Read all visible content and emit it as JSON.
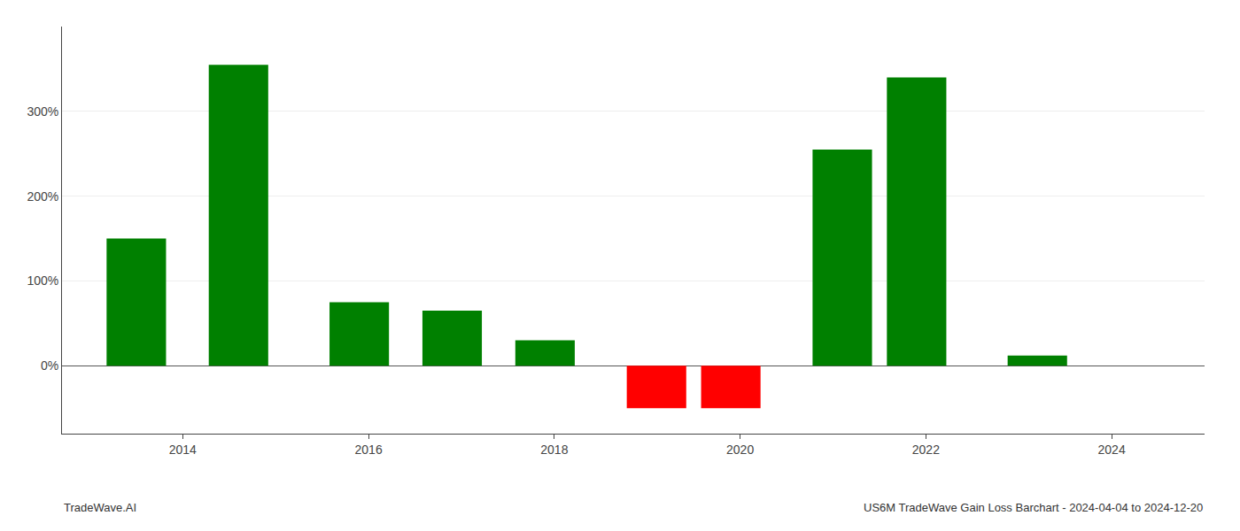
{
  "chart_data": {
    "type": "bar",
    "x": [
      2013.5,
      2014.6,
      2015.9,
      2016.9,
      2017.9,
      2019.1,
      2019.9,
      2021.1,
      2021.9,
      2023.2
    ],
    "values": [
      150,
      355,
      75,
      65,
      30,
      -50,
      -50,
      255,
      340,
      12
    ],
    "colors": [
      "#008000",
      "#008000",
      "#008000",
      "#008000",
      "#008000",
      "#ff0000",
      "#ff0000",
      "#008000",
      "#008000",
      "#008000"
    ],
    "xlim": [
      2012.7,
      2025.0
    ],
    "xticks": [
      2014,
      2016,
      2018,
      2020,
      2022,
      2024
    ],
    "ylim": [
      -80,
      400
    ],
    "yticks": [
      {
        "value": 0,
        "label": "0%"
      },
      {
        "value": 100,
        "label": "100%"
      },
      {
        "value": 200,
        "label": "200%"
      },
      {
        "value": 300,
        "label": "300%"
      }
    ],
    "grid": "y",
    "annotations": [
      "TradeWave.AI",
      "US6M TradeWave Gain Loss Barchart - 2024-04-04 to 2024-12-20"
    ]
  }
}
